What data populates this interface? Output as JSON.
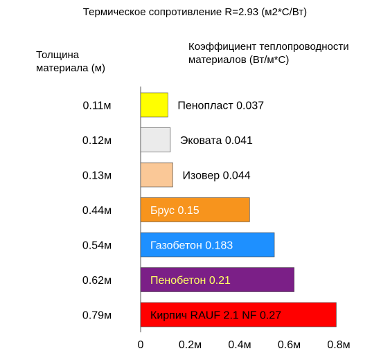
{
  "chart_data": {
    "type": "bar",
    "orientation": "horizontal",
    "title": "Термическое сопротивление R=2.93 (м2*С/Вт)",
    "ylabel": "Толщина материала (м)",
    "xlabel": "Коэффициент теплопроводности материалов (Вт/м*С)",
    "categories": [
      "0.11м",
      "0.12м",
      "0.13м",
      "0.44м",
      "0.54м",
      "0.62м",
      "0.79м"
    ],
    "values": [
      0.11,
      0.12,
      0.13,
      0.44,
      0.54,
      0.62,
      0.79
    ],
    "bar_labels": [
      "Пенопласт  0.037",
      "Эковата 0.041",
      "Изовер 0.044",
      "Брус  0.15",
      "Газобетон  0.183",
      "Пенобетон  0.21",
      "Кирпич RAUF 2.1 NF  0.27"
    ],
    "bar_colors": [
      "#ffff00",
      "#ebebeb",
      "#fac897",
      "#f7941d",
      "#1e90ff",
      "#7b1f87",
      "#ff0000"
    ],
    "label_colors": [
      "#000000",
      "#000000",
      "#000000",
      "#ffffff",
      "#ffffff",
      "#ffff66",
      "#000000"
    ],
    "label_inside": [
      false,
      false,
      false,
      true,
      true,
      true,
      true
    ],
    "xticks": [
      "0",
      "0.2м",
      "0.4м",
      "0.6м",
      "0.8м"
    ],
    "xtick_values": [
      0,
      0.2,
      0.4,
      0.6,
      0.8
    ],
    "xlim": [
      0,
      0.8
    ],
    "grid": false
  }
}
